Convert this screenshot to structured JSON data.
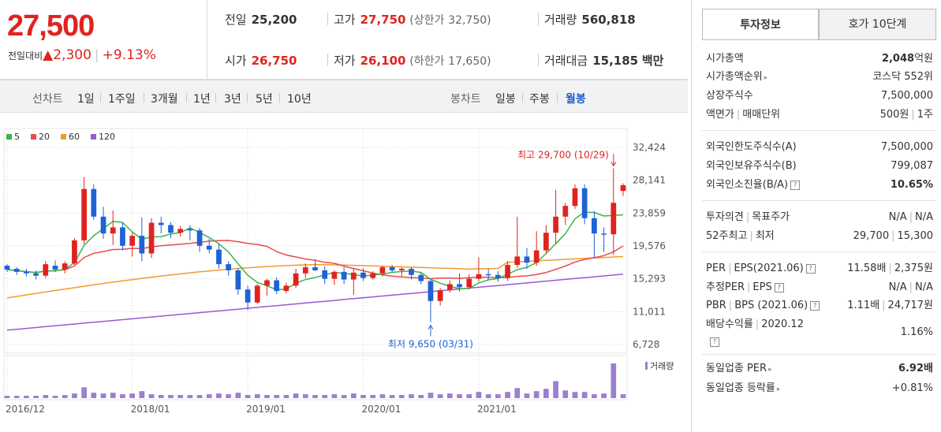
{
  "price": {
    "current": "27,500",
    "change_label": "전일대비",
    "change_arrow": "▲",
    "change_value": "2,300",
    "change_pct": "+9.13%"
  },
  "quotes": {
    "prev_close_label": "전일",
    "prev_close": "25,200",
    "high_label": "고가",
    "high": "27,750",
    "upper_limit_label": "(상한가",
    "upper_limit": "32,750)",
    "volume_label": "거래량",
    "volume": "560,818",
    "open_label": "시가",
    "open": "26,750",
    "low_label": "저가",
    "low": "26,100",
    "lower_limit_label": "(하한가",
    "lower_limit": "17,650)",
    "amount_label": "거래대금",
    "amount": "15,185",
    "amount_unit": "백만"
  },
  "period_tabs": {
    "line_chart_label": "선차트",
    "items": [
      "1일",
      "1주일",
      "3개월",
      "1년",
      "3년",
      "5년",
      "10년"
    ],
    "candle_chart_label": "봉차트",
    "candle_items": [
      "일봉",
      "주봉",
      "월봉"
    ],
    "active_candle": "월봉"
  },
  "chart_data": {
    "type": "candlestick",
    "legend": [
      {
        "name": "5",
        "color": "#3cb44b"
      },
      {
        "name": "20",
        "color": "#e84b4b"
      },
      {
        "name": "60",
        "color": "#f39a2e"
      },
      {
        "name": "120",
        "color": "#9b59d0"
      }
    ],
    "y_ticks": [
      32424,
      28141,
      23859,
      19576,
      15293,
      11011,
      6728
    ],
    "y_tick_labels": [
      "32,424",
      "28,141",
      "23,859",
      "19,576",
      "15,293",
      "11,011",
      "6,728"
    ],
    "x_labels": [
      "2016/12",
      "2018/01",
      "2019/01",
      "2020/01",
      "2021/01"
    ],
    "volume_label": "거래량",
    "max_annotation": "최고 29,700 (10/29)",
    "min_annotation": "최저 9,650 (03/31)",
    "candles": [
      [
        17000,
        17200,
        16200,
        16500
      ],
      [
        16600,
        16800,
        15800,
        16200
      ],
      [
        16200,
        16600,
        15600,
        16000
      ],
      [
        16000,
        16400,
        15200,
        15700
      ],
      [
        15700,
        17600,
        15400,
        17200
      ],
      [
        17000,
        17700,
        16200,
        16500
      ],
      [
        16500,
        17600,
        16000,
        17300
      ],
      [
        17300,
        20600,
        17100,
        20300
      ],
      [
        20300,
        28600,
        19800,
        27000
      ],
      [
        27000,
        27600,
        23000,
        23400
      ],
      [
        23400,
        24700,
        20500,
        21200
      ],
      [
        21200,
        24200,
        19700,
        22000
      ],
      [
        22000,
        22600,
        19000,
        19600
      ],
      [
        19600,
        21300,
        18200,
        20900
      ],
      [
        20900,
        23300,
        17600,
        18600
      ],
      [
        18600,
        23200,
        18000,
        22600
      ],
      [
        22600,
        23400,
        21200,
        22300
      ],
      [
        22300,
        22700,
        20600,
        21300
      ],
      [
        21300,
        22200,
        20800,
        21800
      ],
      [
        21800,
        22300,
        20300,
        21600
      ],
      [
        21600,
        21900,
        18800,
        19600
      ],
      [
        19600,
        20500,
        18600,
        19100
      ],
      [
        19100,
        19800,
        16600,
        17200
      ],
      [
        17200,
        17600,
        15700,
        16400
      ],
      [
        16400,
        16700,
        13200,
        13900
      ],
      [
        13900,
        14400,
        11200,
        12200
      ],
      [
        12200,
        14600,
        12000,
        14400
      ],
      [
        14400,
        15300,
        13100,
        15100
      ],
      [
        15100,
        15500,
        13300,
        13700
      ],
      [
        13700,
        14800,
        13400,
        14400
      ],
      [
        14400,
        16600,
        14100,
        16000
      ],
      [
        16000,
        17300,
        15400,
        16800
      ],
      [
        16800,
        17800,
        16300,
        16400
      ],
      [
        16400,
        16900,
        14600,
        15300
      ],
      [
        15300,
        16400,
        14500,
        16200
      ],
      [
        16200,
        16800,
        14600,
        15200
      ],
      [
        15200,
        16600,
        13200,
        16100
      ],
      [
        16100,
        16700,
        15000,
        15400
      ],
      [
        15400,
        16300,
        15200,
        16000
      ],
      [
        16000,
        17000,
        15600,
        16800
      ],
      [
        16800,
        17100,
        16100,
        16400
      ],
      [
        16400,
        16800,
        15600,
        16600
      ],
      [
        16600,
        16800,
        15200,
        15800
      ],
      [
        15800,
        16100,
        14600,
        15000
      ],
      [
        15000,
        15300,
        9650,
        12400
      ],
      [
        12400,
        14100,
        11800,
        13800
      ],
      [
        13800,
        15100,
        13500,
        14600
      ],
      [
        14600,
        16000,
        13600,
        14200
      ],
      [
        14200,
        15900,
        13900,
        15300
      ],
      [
        15300,
        18100,
        14900,
        15900
      ],
      [
        15900,
        16600,
        15200,
        15800
      ],
      [
        15800,
        16300,
        14900,
        15400
      ],
      [
        15400,
        17600,
        15000,
        17100
      ],
      [
        17100,
        23400,
        16700,
        18200
      ],
      [
        18200,
        19300,
        16600,
        17400
      ],
      [
        17400,
        21500,
        17000,
        19000
      ],
      [
        19000,
        22300,
        18600,
        21300
      ],
      [
        21300,
        26900,
        19900,
        23400
      ],
      [
        23400,
        25200,
        22300,
        24800
      ],
      [
        24800,
        27600,
        24400,
        27100
      ],
      [
        27100,
        27600,
        22400,
        23200
      ],
      [
        23200,
        24100,
        18000,
        21200
      ],
      [
        21200,
        22000,
        18800,
        21100
      ],
      [
        21100,
        29700,
        18400,
        25200
      ],
      [
        26750,
        27750,
        26100,
        27500
      ]
    ],
    "volumes": [
      3,
      3,
      3,
      3,
      4,
      3,
      4,
      6,
      14,
      7,
      6,
      7,
      5,
      6,
      9,
      5,
      4,
      4,
      4,
      4,
      4,
      5,
      6,
      5,
      7,
      4,
      5,
      4,
      4,
      4,
      6,
      5,
      4,
      4,
      5,
      4,
      6,
      4,
      4,
      5,
      4,
      4,
      5,
      4,
      7,
      5,
      6,
      5,
      5,
      8,
      5,
      5,
      8,
      13,
      6,
      9,
      12,
      22,
      10,
      8,
      8,
      5,
      6,
      45,
      5
    ]
  },
  "side": {
    "tab_invest": "투자정보",
    "tab_quote10": "호가 10단계",
    "market_cap_label": "시가총액",
    "market_cap": "2,048",
    "market_cap_unit": "억원",
    "market_cap_rank_label": "시가총액순위",
    "market_cap_rank": "코스닥 552위",
    "listed_shares_label": "상장주식수",
    "listed_shares": "7,500,000",
    "par_label": "액면가",
    "trade_unit_label": "매매단위",
    "par_value": "500원",
    "trade_unit": "1주",
    "foreign_limit_label": "외국인한도주식수(A)",
    "foreign_limit": "7,500,000",
    "foreign_hold_label": "외국인보유주식수(B)",
    "foreign_hold": "799,087",
    "foreign_rate_label": "외국인소진율(B/A)",
    "foreign_rate": "10.65%",
    "opinion_label": "투자의견",
    "target_label": "목표주가",
    "opinion": "N/A",
    "target": "N/A",
    "high52_label": "52주최고",
    "low52_label": "최저",
    "high52": "29,700",
    "low52": "15,300",
    "per_label": "PER",
    "eps_label": "EPS(2021.06)",
    "per": "11.58배",
    "eps": "2,375원",
    "est_per_label": "추정PER",
    "est_eps_label": "EPS",
    "est_per": "N/A",
    "est_eps": "N/A",
    "pbr_label": "PBR",
    "bps_label": "BPS (2021.06)",
    "pbr": "1.11배",
    "bps": "24,717원",
    "dividend_label": "배당수익률",
    "dividend_date": "2020.12",
    "dividend": "1.16%",
    "sector_per_label": "동일업종 PER",
    "sector_per": "6.92배",
    "sector_change_label": "동일업종 등락률",
    "sector_change": "+0.81%"
  }
}
